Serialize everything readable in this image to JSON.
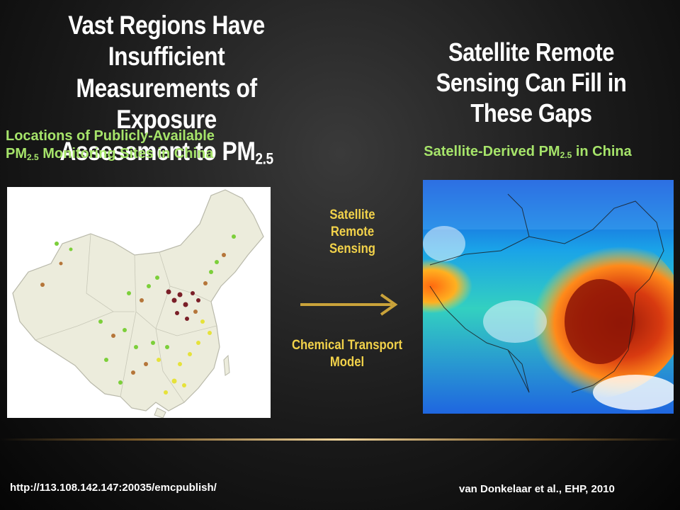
{
  "left_title": {
    "line1": "Vast Regions Have Insufficient",
    "line2": "Measurements of  Exposure",
    "line3_main": "Assessment to PM",
    "line3_sub": "2.5"
  },
  "right_title": {
    "line1": "Satellite Remote",
    "line2": "Sensing Can Fill in",
    "line3": "These Gaps"
  },
  "left_caption": {
    "line1": "Locations of Publicly-Available",
    "line2_pre": "PM",
    "line2_sub": "2.5",
    "line2_post": " Monitoring Sites in China"
  },
  "right_caption": {
    "pre": "Satellite-Derived PM",
    "sub": "2.5",
    "post": " in China"
  },
  "methods": {
    "method1": [
      "Satellite",
      "Remote",
      "Sensing"
    ],
    "method2": [
      "Chemical Transport",
      "Model"
    ]
  },
  "footer": {
    "url": "http://113.108.142.147:20035/emcpublish/",
    "citation": "van Donkelaar et al., EHP, 2010"
  },
  "colors": {
    "title": "#ffffff",
    "caption": "#a6e46a",
    "method": "#f2d24a",
    "arrow": "#c9a23a"
  }
}
